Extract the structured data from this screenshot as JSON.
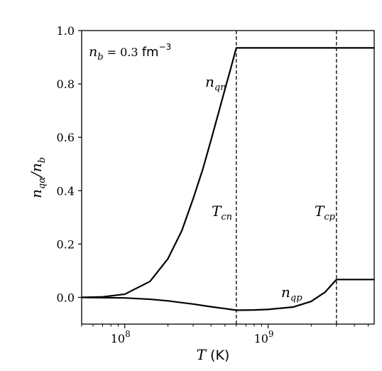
{
  "chart_data": {
    "type": "line",
    "annotation_density": "n_b = 0.3 fm^-3",
    "xlabel": "T (K)",
    "ylabel": "n_qα/n_b",
    "xscale": "log",
    "xlim": [
      50000000,
      5500000000
    ],
    "ylim": [
      -0.1,
      1.0
    ],
    "yticks": [
      0.0,
      0.2,
      0.4,
      0.6,
      0.8,
      1.0
    ],
    "ytick_labels": [
      "0.0",
      "0.2",
      "0.4",
      "0.6",
      "0.8",
      "1.0"
    ],
    "xticks": [
      100000000,
      1000000000
    ],
    "xtick_labels": [
      "10^8",
      "10^9"
    ],
    "critical_temperatures": [
      {
        "label": "T_cn",
        "x": 600000000
      },
      {
        "label": "T_cp",
        "x": 3000000000
      }
    ],
    "series": [
      {
        "name": "n_qn",
        "x": [
          50000000,
          70000000,
          100000000,
          150000000,
          200000000,
          250000000,
          300000000,
          350000000,
          400000000,
          450000000,
          500000000,
          550000000,
          600000000,
          1000000000,
          3000000000,
          5500000000
        ],
        "y": [
          0.0,
          0.002,
          0.012,
          0.06,
          0.145,
          0.25,
          0.37,
          0.48,
          0.59,
          0.69,
          0.78,
          0.86,
          0.935,
          0.935,
          0.935,
          0.935
        ]
      },
      {
        "name": "n_qp",
        "x": [
          50000000,
          100000000,
          150000000,
          200000000,
          300000000,
          400000000,
          500000000,
          600000000,
          800000000,
          1000000000,
          1500000000,
          2000000000,
          2500000000,
          3000000000,
          5500000000
        ],
        "y": [
          0.0,
          -0.002,
          -0.007,
          -0.013,
          -0.025,
          -0.035,
          -0.042,
          -0.048,
          -0.047,
          -0.045,
          -0.036,
          -0.015,
          0.02,
          0.067,
          0.067
        ]
      }
    ]
  }
}
